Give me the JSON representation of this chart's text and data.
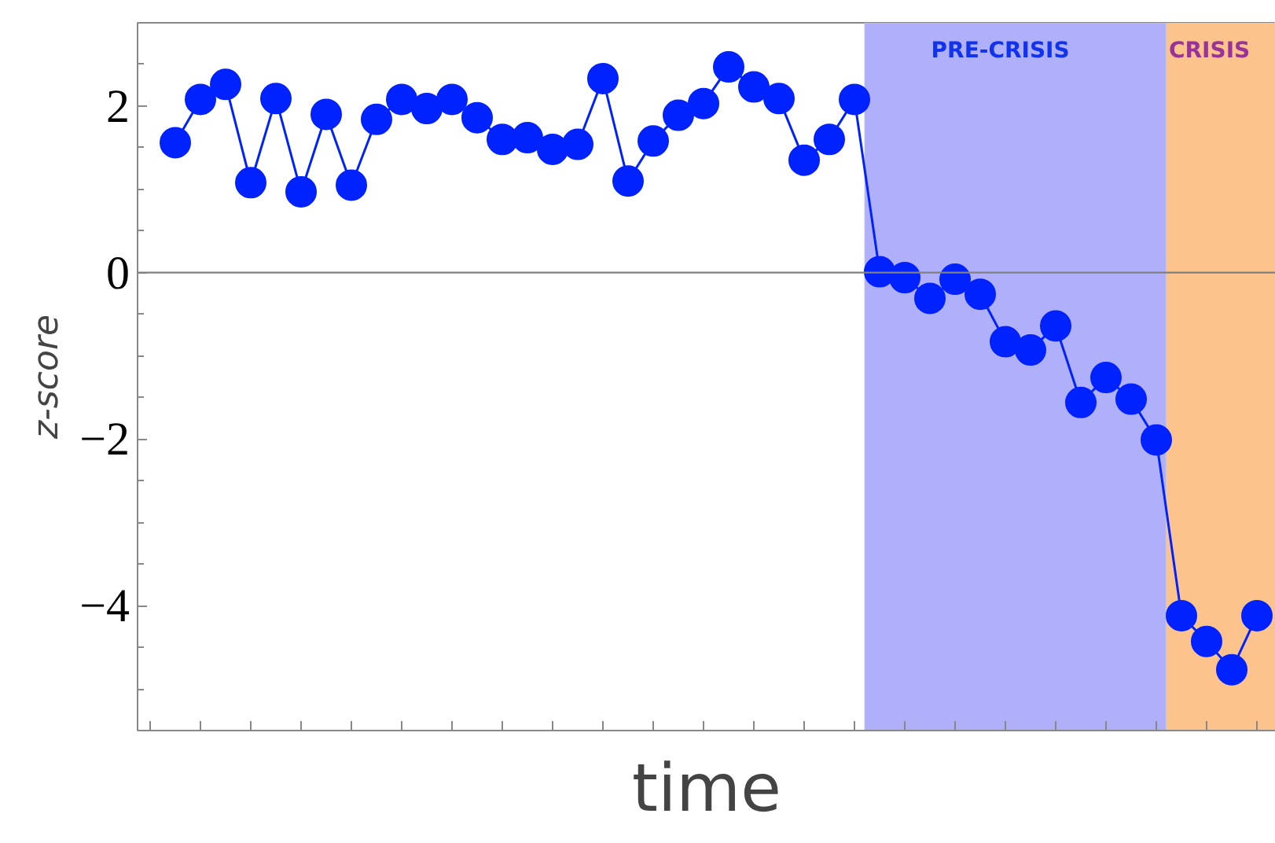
{
  "chart_data": {
    "type": "line",
    "xlabel": "time",
    "ylabel": "z-score",
    "categories": [
      null,
      null,
      null,
      null,
      null,
      null,
      null,
      null,
      null,
      null,
      null,
      null,
      null,
      null,
      null,
      null,
      null,
      null,
      null,
      null,
      null,
      null,
      null,
      null,
      null,
      null,
      null,
      null,
      null,
      null,
      null,
      null,
      null,
      null,
      null,
      null,
      null,
      null,
      null,
      null,
      null,
      null,
      null,
      null
    ],
    "series": [
      {
        "color": "#0022ff",
        "values": [
          1.56,
          2.08,
          2.26,
          1.08,
          2.09,
          0.97,
          1.9,
          1.05,
          1.84,
          2.08,
          1.97,
          2.08,
          1.86,
          1.6,
          1.62,
          1.48,
          1.54,
          2.33,
          1.1,
          1.58,
          1.89,
          2.03,
          2.47,
          2.23,
          2.09,
          1.35,
          1.6,
          2.08,
          0.01,
          -0.06,
          -0.31,
          -0.08,
          -0.26,
          -0.83,
          -0.93,
          -0.64,
          -1.56,
          -1.26,
          -1.52,
          -2.01,
          -4.12,
          -4.43,
          -4.77,
          -4.12
        ]
      }
    ],
    "ylim": [
      -5.5,
      3
    ],
    "yticks": [
      {
        "value": -4,
        "label": "−4"
      },
      {
        "value": -2,
        "label": "−2"
      },
      0,
      2
    ],
    "tick_labels": "y",
    "ref_lines": [
      {
        "axis": "y",
        "value": 0,
        "color": "#808080"
      }
    ],
    "annotations": [
      "PRE-CRISIS",
      "CRISIS"
    ],
    "marker": "circle",
    "line_style": "solid",
    "grid": false
  }
}
